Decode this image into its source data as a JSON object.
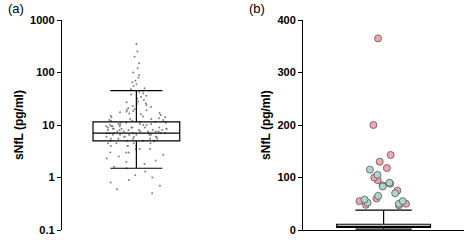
{
  "chart_data": [
    {
      "type": "box",
      "title": "(a)",
      "y_label": "sNfL (pg/ml)",
      "log": "y",
      "ylim": [
        0.1,
        1000
      ],
      "yticks": [
        0.1,
        1,
        10,
        100,
        1000
      ],
      "tick_labels": "y",
      "box": {
        "q1": 5,
        "median": 7,
        "q3": 11.5,
        "lowerfence": 1.5,
        "upperfence": 45
      },
      "series": [
        {
          "color": "#808080",
          "values": [
            350,
            250,
            200,
            150,
            120,
            100,
            90,
            80,
            70,
            65,
            60,
            55,
            50,
            48,
            45,
            42,
            40,
            38,
            36,
            34,
            32,
            30,
            28,
            27,
            26,
            25,
            24,
            23,
            22,
            21,
            20,
            19.5,
            19,
            18.5,
            18,
            17.5,
            17,
            16.5,
            16,
            15.5,
            15,
            14.5,
            14,
            14,
            13.5,
            13,
            13,
            12.5,
            12.5,
            12,
            12,
            11.5,
            11.5,
            11,
            11,
            11,
            10.5,
            10.5,
            10.5,
            10,
            10,
            10,
            10,
            9.5,
            9.5,
            9.5,
            9.5,
            9,
            9,
            9,
            9,
            9,
            8.5,
            8.5,
            8.5,
            8.5,
            8.5,
            8,
            8,
            8,
            8,
            8,
            8,
            7.5,
            7.5,
            7.5,
            7.5,
            7.5,
            7.5,
            7,
            7,
            7,
            7,
            7,
            7,
            7,
            6.5,
            6.5,
            6.5,
            6.5,
            6.5,
            6.5,
            6,
            6,
            6,
            6,
            6,
            6,
            5.5,
            5.5,
            5.5,
            5.5,
            5.5,
            5,
            5,
            5,
            5,
            5,
            4.5,
            4.5,
            4.5,
            4.5,
            4,
            4,
            4,
            4,
            3.5,
            3.5,
            3.5,
            3,
            3,
            3,
            2.7,
            2.5,
            2.3,
            2.1,
            2,
            1.8,
            1.6,
            1.5,
            1.3,
            1.1,
            1,
            0.9,
            0.8,
            0.7,
            0.6,
            0.5
          ]
        }
      ]
    },
    {
      "type": "box",
      "title": "(b)",
      "y_label": "sNfL (pg/ml)",
      "ylim": [
        0,
        400
      ],
      "yticks": [
        0,
        100,
        200,
        300,
        400
      ],
      "tick_labels": "y",
      "box": {
        "q1": 5,
        "median": 7,
        "q3": 11,
        "lowerfence": 1.5,
        "upperfence": 38
      },
      "series": [
        {
          "color": "#f2a7ae",
          "values": [
            365,
            200,
            143,
            130,
            118,
            100,
            95,
            88,
            85,
            75,
            60,
            55,
            50,
            48,
            47
          ]
        },
        {
          "color": "#a8d8cf",
          "values": [
            115,
            105,
            90,
            83,
            70,
            65,
            58,
            55,
            52,
            50
          ]
        }
      ]
    }
  ]
}
